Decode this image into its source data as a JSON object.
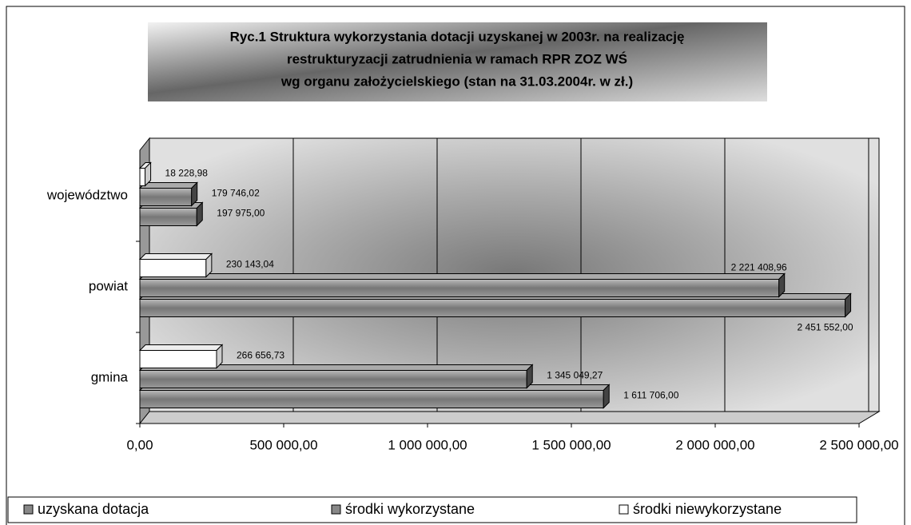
{
  "chart_data": {
    "type": "bar",
    "orientation": "horizontal",
    "title": [
      "Ryc.1 Struktura wykorzystania dotacji uzyskanej w 2003r.  na realizację",
      "restrukturyzacji zatrudnienia w ramach RPR ZOZ WŚ",
      "wg organu założycielskiego        (stan na 31.03.2004r.  w zł.)"
    ],
    "categories": [
      "gmina",
      "powiat",
      "województwo"
    ],
    "series": [
      {
        "name": "uzyskana dotacja",
        "color": "#8c8c8c",
        "values": [
          1611706.0,
          2451552.0,
          197975.0
        ],
        "value_labels": [
          "1 611 706,00",
          "2 451 552,00",
          "197 975,00"
        ]
      },
      {
        "name": "środki wykorzystane",
        "color": "#7a7a7a",
        "values": [
          1345049.27,
          2221408.96,
          179746.02
        ],
        "value_labels": [
          "1 345 049,27",
          "2 221 408,96",
          "179 746,02"
        ]
      },
      {
        "name": "środki niewykorzystane",
        "color": "#ffffff",
        "values": [
          266656.73,
          230143.04,
          18228.98
        ],
        "value_labels": [
          "266 656,73",
          "230 143,04",
          "18 228,98"
        ]
      }
    ],
    "xlim": [
      0,
      2500000
    ],
    "xticks": [
      {
        "value": 0,
        "label": "0,00"
      },
      {
        "value": 500000,
        "label": "500 000,00"
      },
      {
        "value": 1000000,
        "label": "1 000 000,00"
      },
      {
        "value": 1500000,
        "label": "1 500 000,00"
      },
      {
        "value": 2000000,
        "label": "2 000 000,00"
      },
      {
        "value": 2500000,
        "label": "2 500 000,00"
      }
    ],
    "grid": true,
    "legend": "bottom"
  }
}
